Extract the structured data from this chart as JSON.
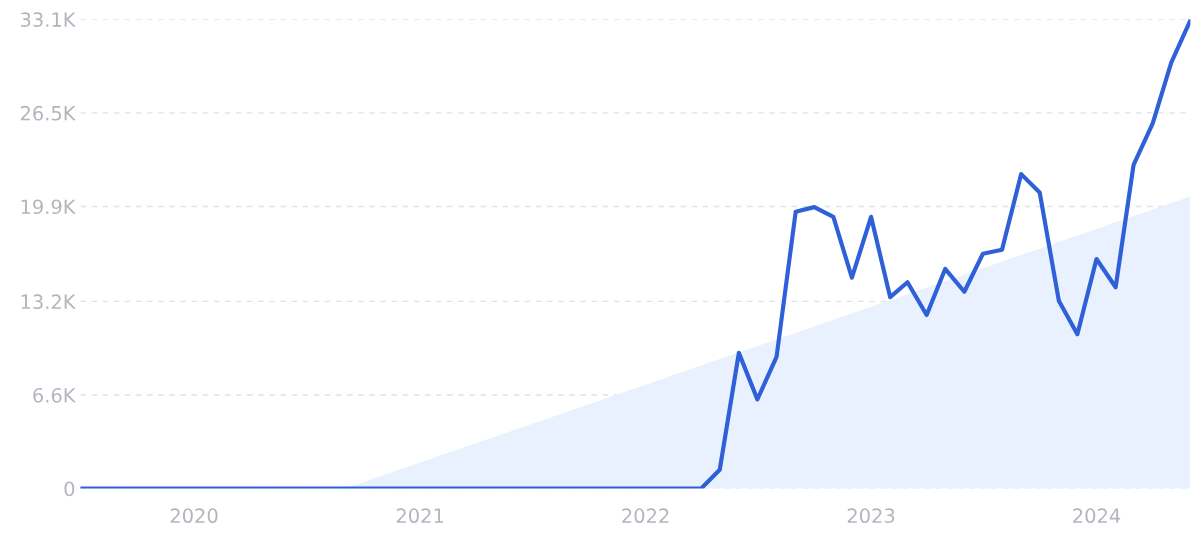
{
  "chart_data": {
    "type": "line",
    "series": [
      {
        "type": "area",
        "color": "#e8f1fd",
        "x": [
          "2020-09",
          "2024-06"
        ],
        "values": [
          0,
          20600
        ]
      },
      {
        "color": "#3060d8",
        "x": [
          "2019-07",
          "2022-04",
          "2022-05",
          "2022-06",
          "2022-07",
          "2022-08",
          "2022-09",
          "2022-10",
          "2022-11",
          "2022-12",
          "2023-01",
          "2023-02",
          "2023-03",
          "2023-04",
          "2023-05",
          "2023-06",
          "2023-07",
          "2023-08",
          "2023-09",
          "2023-10",
          "2023-11",
          "2023-12",
          "2024-01",
          "2024-02",
          "2024-03",
          "2024-04",
          "2024-05",
          "2024-06"
        ],
        "values": [
          0,
          0,
          1320,
          9570,
          6290,
          9280,
          19520,
          19850,
          19170,
          14870,
          19170,
          13500,
          14550,
          12240,
          15490,
          13880,
          16560,
          16840,
          22180,
          20890,
          13250,
          10890,
          16190,
          14200,
          22830,
          25760,
          30040,
          33030
        ]
      }
    ],
    "xlim": [
      "2019-07",
      "2024-06"
    ],
    "xticks": [
      "2020",
      "2021",
      "2022",
      "2023",
      "2024"
    ],
    "ylim": [
      0,
      33100
    ],
    "yticks": [
      {
        "value": 0,
        "label": "0"
      },
      {
        "value": 6600,
        "label": "6.6K"
      },
      {
        "value": 13200,
        "label": "13.2K"
      },
      {
        "value": 19900,
        "label": "19.9K"
      },
      {
        "value": 26500,
        "label": "26.5K"
      },
      {
        "value": 33100,
        "label": "33.1K"
      }
    ],
    "grid": "y",
    "line_style": "solid",
    "marker": "none"
  }
}
